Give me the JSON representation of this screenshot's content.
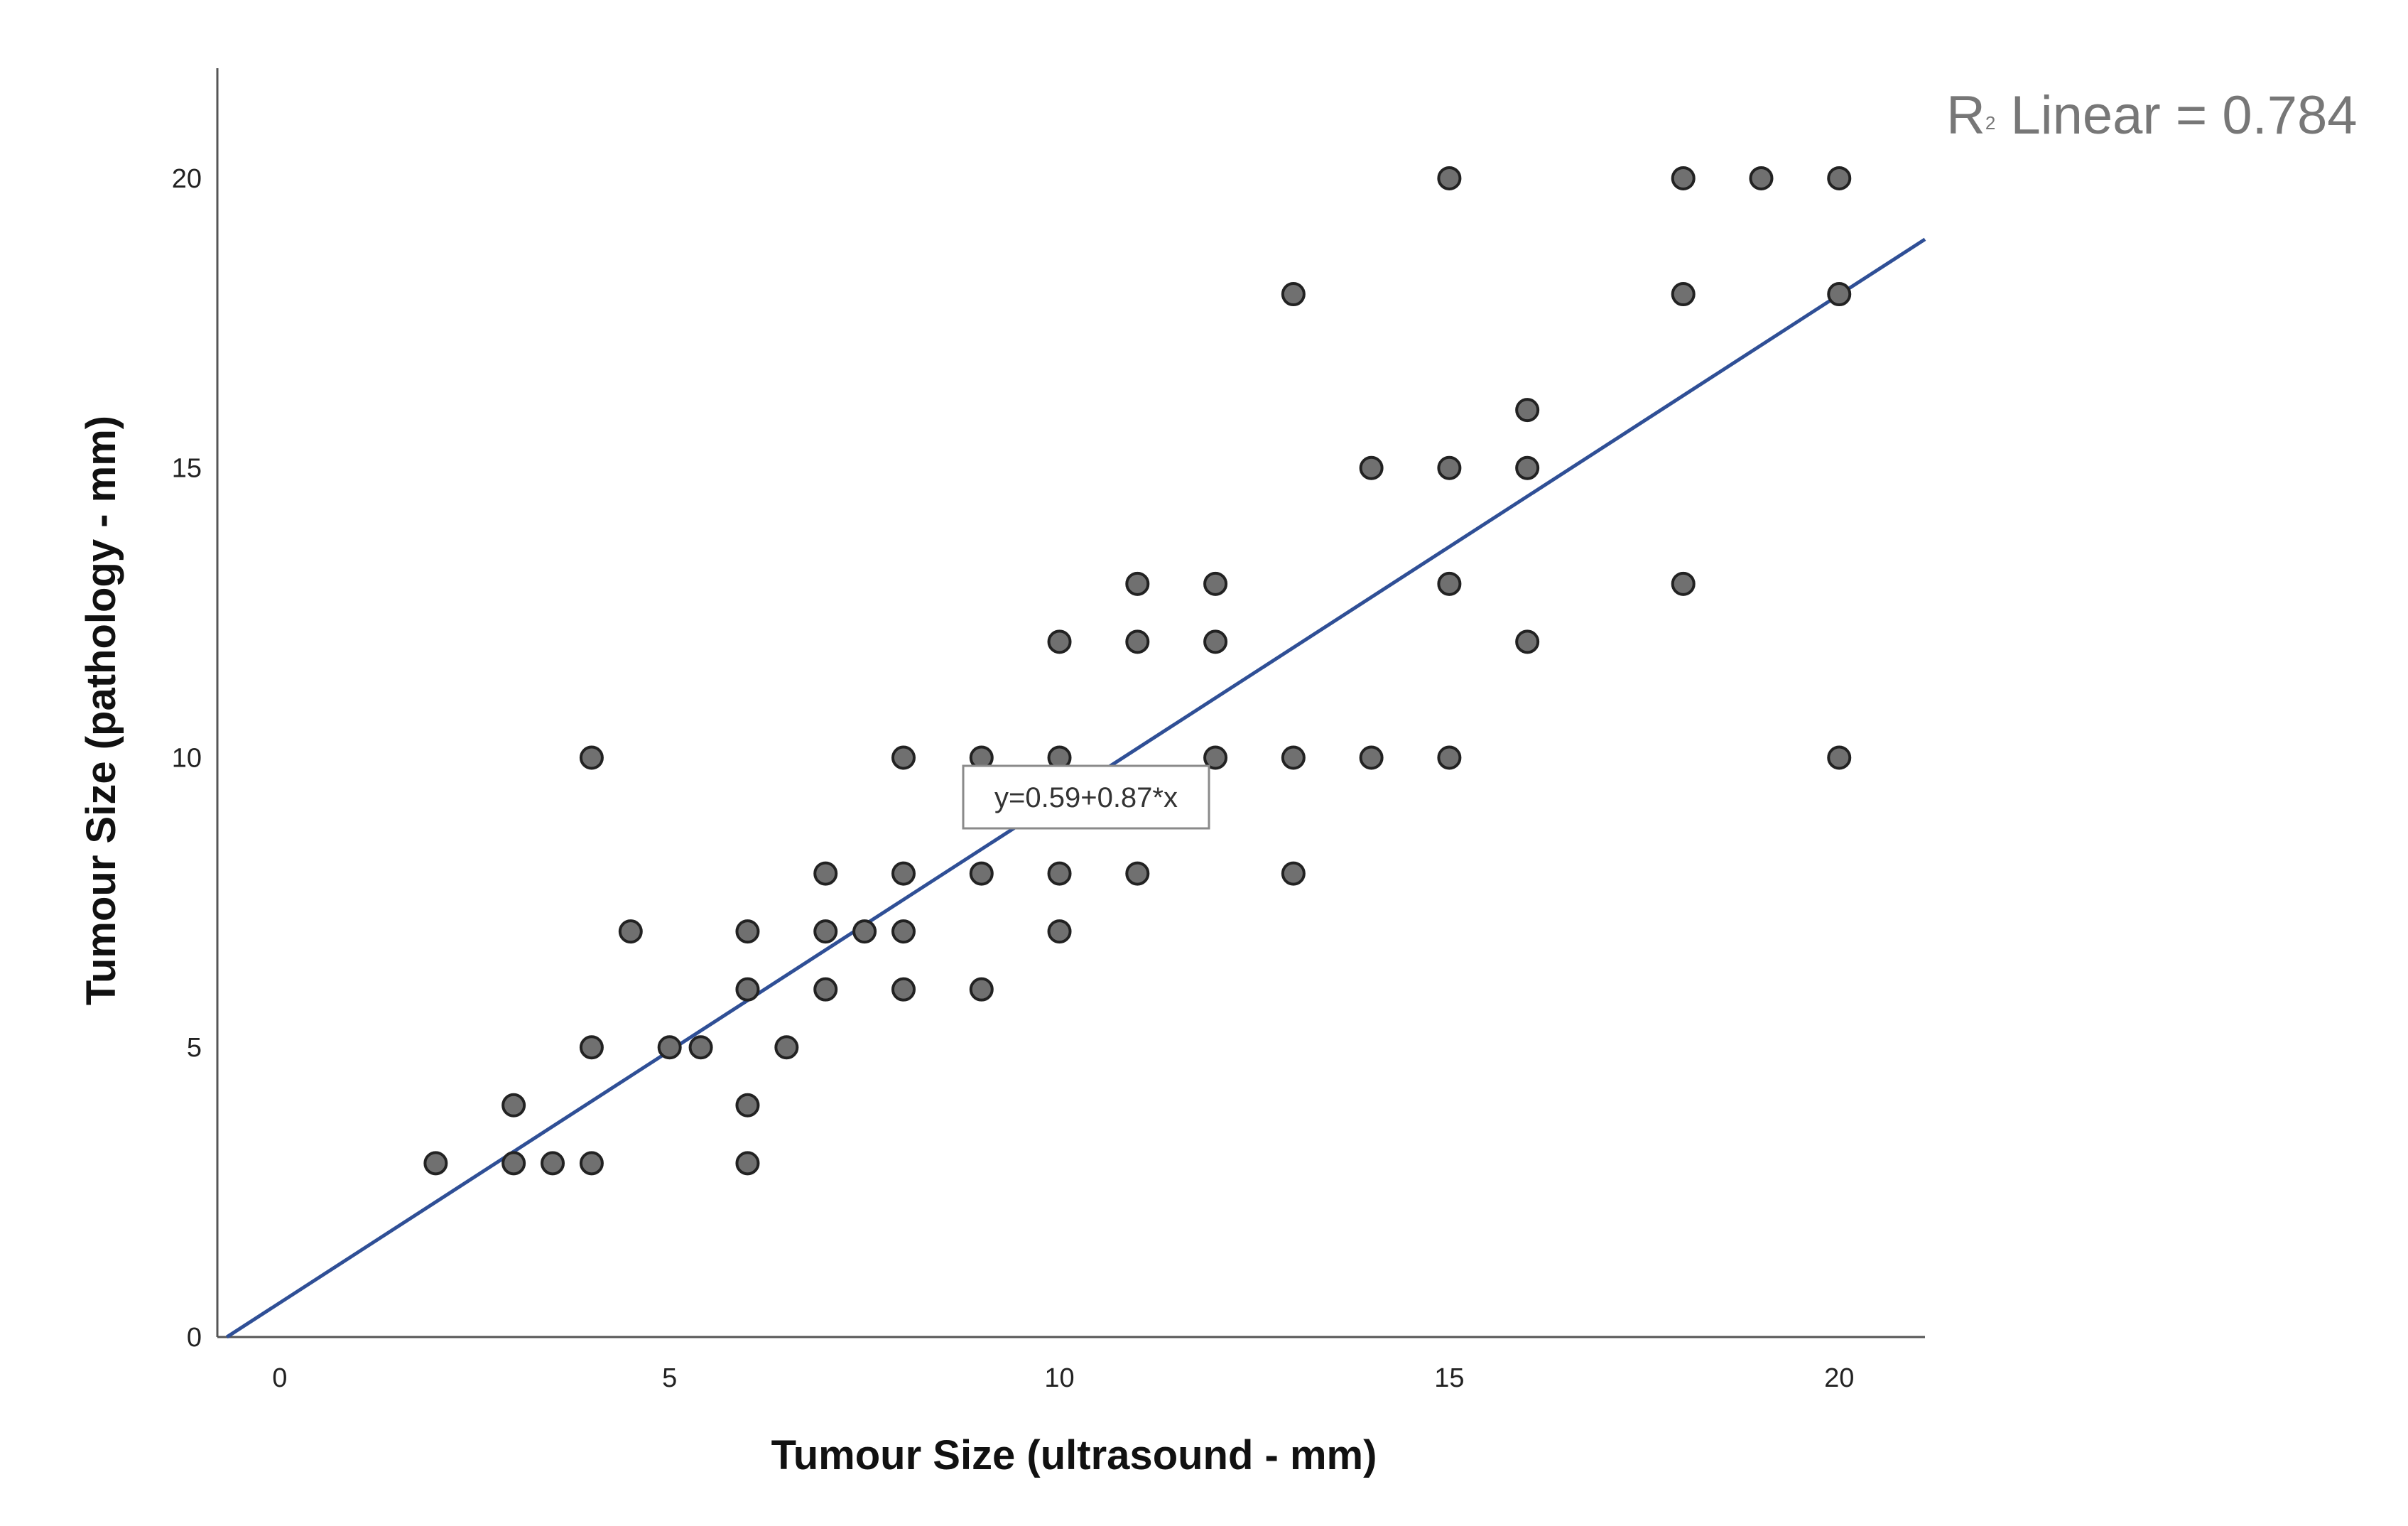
{
  "chart_data": {
    "type": "scatter",
    "title": "",
    "xlabel": "Tumour Size (ultrasound - mm)",
    "ylabel": "Tumour Size (pathology - mm)",
    "xlim": [
      -0.8,
      21.1
    ],
    "ylim": [
      0,
      21.9
    ],
    "xticks": [
      0,
      5,
      10,
      15,
      20
    ],
    "yticks": [
      0,
      5,
      10,
      15,
      20
    ],
    "grid": false,
    "point_color": "#707070",
    "point_edge_color": "#222222",
    "line_color": "#2F4F96",
    "fit": {
      "intercept": 0.59,
      "slope": 0.87,
      "equation_label": "y=0.59+0.87*x",
      "r2_prefix": "R",
      "r2_sup": "2",
      "r2_suffix": " Linear = 0.784"
    },
    "points": [
      [
        2,
        3
      ],
      [
        3,
        3
      ],
      [
        3,
        4
      ],
      [
        3.5,
        3
      ],
      [
        4,
        3
      ],
      [
        4,
        5
      ],
      [
        4,
        10
      ],
      [
        4.5,
        7
      ],
      [
        5,
        5
      ],
      [
        5.4,
        5
      ],
      [
        6,
        3
      ],
      [
        6,
        4
      ],
      [
        6,
        6
      ],
      [
        6,
        7
      ],
      [
        6.5,
        5
      ],
      [
        7,
        6
      ],
      [
        7,
        7
      ],
      [
        7,
        8
      ],
      [
        7.5,
        7
      ],
      [
        8,
        6
      ],
      [
        8,
        7
      ],
      [
        8,
        8
      ],
      [
        8,
        10
      ],
      [
        9,
        6
      ],
      [
        9,
        8
      ],
      [
        9,
        10
      ],
      [
        10,
        7
      ],
      [
        10,
        8
      ],
      [
        10,
        10
      ],
      [
        10,
        12
      ],
      [
        11,
        8
      ],
      [
        11,
        12
      ],
      [
        11,
        13
      ],
      [
        12,
        10
      ],
      [
        12,
        12
      ],
      [
        12,
        13
      ],
      [
        13,
        8
      ],
      [
        13,
        10
      ],
      [
        13,
        18
      ],
      [
        14,
        10
      ],
      [
        14,
        15
      ],
      [
        15,
        10
      ],
      [
        15,
        13
      ],
      [
        15,
        15
      ],
      [
        15,
        20
      ],
      [
        16,
        12
      ],
      [
        16,
        15
      ],
      [
        16,
        16
      ],
      [
        18,
        13
      ],
      [
        18,
        18
      ],
      [
        18,
        20
      ],
      [
        19,
        20
      ],
      [
        20,
        10
      ],
      [
        20,
        18
      ],
      [
        20,
        20
      ]
    ]
  }
}
